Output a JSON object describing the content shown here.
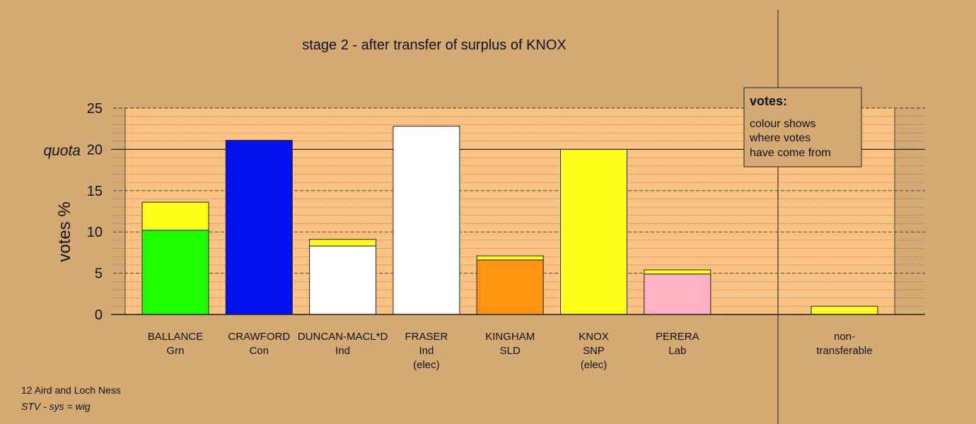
{
  "chart_data": {
    "type": "bar",
    "stacked": true,
    "title": "stage 2 - after transfer of surplus of KNOX",
    "ylabel": "votes %",
    "ylim": [
      0,
      25
    ],
    "yticks": [
      0,
      5,
      10,
      15,
      20,
      25
    ],
    "quota": 20,
    "quota_label": "quota",
    "grid": "dotted minor lines every 1%, dashed major lines every 5%",
    "colors": {
      "Grn": "#1eff00",
      "Con": "#0011ee",
      "Ind": "#ffffff",
      "SLD": "#ff9410",
      "SNP": "#ffff19",
      "Lab": "#ffb0c3",
      "plot_bg": "#fbc282",
      "page_bg": "#d4a972"
    },
    "candidates": [
      {
        "name": "BALLANCE",
        "party": "Grn",
        "note": "",
        "segments": [
          {
            "from": "Grn",
            "value": 10.2
          },
          {
            "from": "SNP",
            "value": 3.4
          }
        ]
      },
      {
        "name": "CRAWFORD",
        "party": "Con",
        "note": "",
        "segments": [
          {
            "from": "Con",
            "value": 21.1
          }
        ]
      },
      {
        "name": "DUNCAN-MACL*D",
        "party": "Ind",
        "note": "",
        "segments": [
          {
            "from": "Ind",
            "value": 8.3
          },
          {
            "from": "SNP",
            "value": 0.8
          }
        ]
      },
      {
        "name": "FRASER",
        "party": "Ind",
        "note": "(elec)",
        "segments": [
          {
            "from": "Ind",
            "value": 22.8
          }
        ]
      },
      {
        "name": "KINGHAM",
        "party": "SLD",
        "note": "",
        "segments": [
          {
            "from": "SLD",
            "value": 6.6
          },
          {
            "from": "SNP",
            "value": 0.5
          }
        ]
      },
      {
        "name": "KNOX",
        "party": "SNP",
        "note": "(elec)",
        "segments": [
          {
            "from": "SNP",
            "value": 20.0
          }
        ]
      },
      {
        "name": "PERERA",
        "party": "Lab",
        "note": "",
        "segments": [
          {
            "from": "Lab",
            "value": 4.9
          },
          {
            "from": "SNP",
            "value": 0.5
          }
        ]
      }
    ],
    "nontransferable": {
      "label_line1": "non-",
      "label_line2": "transferable",
      "segments": [
        {
          "from": "SNP",
          "value": 1.0
        }
      ]
    },
    "legend": {
      "title": "votes:",
      "lines": [
        "colour shows",
        "where votes",
        "have come from"
      ],
      "placement": "top-right"
    }
  },
  "footer": {
    "constituency": "12 Aird and Loch Ness",
    "system": "STV - sys = wig"
  }
}
